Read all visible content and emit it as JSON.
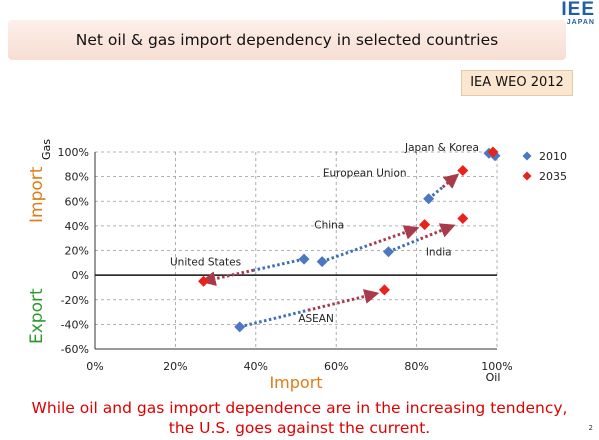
{
  "title": "Net oil & gas import dependency in selected countries",
  "logo": {
    "main": "IEE",
    "sub": "JAPAN"
  },
  "source": "IEA WEO 2012",
  "side_labels": {
    "import": "Import",
    "export": "Export"
  },
  "footer": {
    "line1": "While oil and gas import dependence are in the increasing tendency,",
    "line2": "the U.S. goes against the current."
  },
  "page_number": "2",
  "colors": {
    "series_2010": "#4a78c2",
    "series_2035": "#e8231b",
    "arrow_blue": "#3d6fba",
    "arrow_red": "#a83a4a",
    "import_label": "#e07b16",
    "export_label": "#2e9a2e",
    "footer": "#e00000"
  },
  "chart_data": {
    "type": "scatter",
    "xlabel": "Import",
    "x_axis_end_label": "Oil",
    "ylabel": "Gas",
    "xlim": [
      0,
      100
    ],
    "ylim": [
      -60,
      100
    ],
    "x_ticks": [
      0,
      20,
      40,
      60,
      80,
      100
    ],
    "y_ticks": [
      -60,
      -40,
      -20,
      0,
      20,
      40,
      60,
      80,
      100
    ],
    "x_tick_labels": [
      "0%",
      "20%",
      "40%",
      "60%",
      "80%",
      "100%"
    ],
    "y_tick_labels": [
      "-60%",
      "-40%",
      "-20%",
      "0%",
      "20%",
      "40%",
      "60%",
      "80%",
      "100%"
    ],
    "grid": true,
    "legend_position": "top-right",
    "series": [
      {
        "name": "2010",
        "marker": "diamond",
        "points": [
          {
            "x": 52,
            "y": 13
          },
          {
            "x": 56.5,
            "y": 11
          },
          {
            "x": 73,
            "y": 19
          },
          {
            "x": 83,
            "y": 62
          },
          {
            "x": 98,
            "y": 99
          },
          {
            "x": 99.5,
            "y": 97
          },
          {
            "x": 36,
            "y": -42
          }
        ]
      },
      {
        "name": "2035",
        "marker": "diamond",
        "points": [
          {
            "x": 27,
            "y": -5
          },
          {
            "x": 82,
            "y": 41
          },
          {
            "x": 91.5,
            "y": 46
          },
          {
            "x": 91.5,
            "y": 85
          },
          {
            "x": 99,
            "y": 100
          },
          {
            "x": 72,
            "y": -12
          }
        ]
      }
    ],
    "trajectories": [
      {
        "country": "United States",
        "from": [
          52,
          13
        ],
        "to": [
          27,
          -5
        ]
      },
      {
        "country": "China",
        "from": [
          56.5,
          11
        ],
        "to": [
          80,
          38
        ]
      },
      {
        "country": "India",
        "from": [
          73,
          19
        ],
        "to": [
          89,
          40
        ]
      },
      {
        "country": "European Union",
        "from": [
          83,
          62
        ],
        "to": [
          90,
          81
        ]
      },
      {
        "country": "ASEAN",
        "from": [
          36,
          -42
        ],
        "to": [
          70,
          -15
        ]
      }
    ],
    "annotations": [
      {
        "text": "Japan & Korea",
        "x": 95.5,
        "y": 101
      },
      {
        "text": "European Union",
        "x": 77.5,
        "y": 80
      },
      {
        "text": "China",
        "x": 62,
        "y": 38
      },
      {
        "text": "India",
        "x": 85.5,
        "y": 16
      },
      {
        "text": "United States",
        "x": 27.5,
        "y": 8
      },
      {
        "text": "ASEAN",
        "x": 55,
        "y": -38
      }
    ]
  }
}
